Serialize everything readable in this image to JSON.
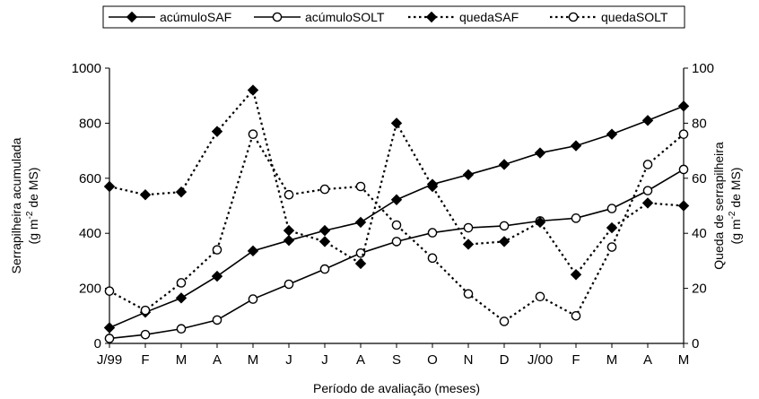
{
  "chart_data": {
    "type": "line",
    "xlabel": "Período de avaliação (meses)",
    "ylabel_left": [
      "Serrapilheira acumulada",
      "(g m",
      "-2",
      " de MS)"
    ],
    "ylabel_right": [
      "Queda de serrapilheira",
      "(g m",
      "-2",
      " de MS)"
    ],
    "categories": [
      "J/99",
      "F",
      "M",
      "A",
      "M",
      "J",
      "J",
      "A",
      "S",
      "O",
      "N",
      "D",
      "J/00",
      "F",
      "M",
      "A",
      "M"
    ],
    "ylim_left": [
      0,
      1000
    ],
    "ylim_right": [
      0,
      100
    ],
    "yticks_left": [
      0,
      200,
      400,
      600,
      800,
      1000
    ],
    "yticks_right": [
      0,
      20,
      40,
      60,
      80,
      100
    ],
    "grid": false,
    "legend_position": "top",
    "series": [
      {
        "name": "acúmuloSAF",
        "axis": "left",
        "style": "solid",
        "marker": "diamond-filled",
        "values": [
          57,
          113,
          165,
          244,
          336,
          374,
          410,
          440,
          522,
          578,
          613,
          650,
          692,
          718,
          760,
          810,
          862
        ]
      },
      {
        "name": "acúmuloSOLT",
        "axis": "left",
        "style": "solid",
        "marker": "circle-open",
        "values": [
          18,
          32,
          53,
          85,
          161,
          215,
          270,
          328,
          370,
          402,
          420,
          427,
          445,
          455,
          490,
          555,
          632
        ]
      },
      {
        "name": "quedaSAF",
        "axis": "right",
        "style": "dotted",
        "marker": "diamond-filled",
        "values": [
          57,
          54,
          55,
          77,
          92,
          41,
          37,
          29,
          80,
          57,
          36,
          37,
          44,
          25,
          42,
          51,
          50
        ]
      },
      {
        "name": "quedaSOLT",
        "axis": "right",
        "style": "dotted",
        "marker": "circle-open",
        "values": [
          19,
          12,
          22,
          34,
          76,
          54,
          56,
          57,
          43,
          31,
          18,
          8,
          17,
          10,
          35,
          65,
          76
        ]
      }
    ]
  }
}
